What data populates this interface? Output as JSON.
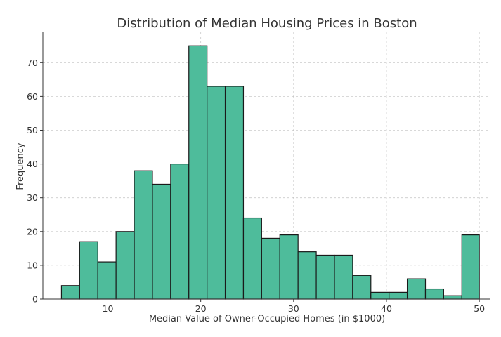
{
  "chart_data": {
    "type": "bar",
    "title": "Distribution of Median Housing Prices in Boston",
    "xlabel": "Median Value of Owner-Occupied Homes (in $1000)",
    "ylabel": "Frequency",
    "xlim": [
      3.0,
      51.2
    ],
    "ylim": [
      0,
      79
    ],
    "bin_edges": [
      5.0,
      6.96,
      8.92,
      10.88,
      12.84,
      14.8,
      16.76,
      18.72,
      20.68,
      22.64,
      24.6,
      26.56,
      28.52,
      30.48,
      32.44,
      34.4,
      36.36,
      38.32,
      40.28,
      42.24,
      44.2,
      46.16,
      48.12,
      50.0
    ],
    "values": [
      4,
      17,
      11,
      20,
      38,
      34,
      40,
      75,
      63,
      63,
      24,
      18,
      19,
      14,
      13,
      13,
      7,
      2,
      2,
      6,
      3,
      1,
      19
    ],
    "xticks": [
      10,
      20,
      30,
      40,
      50
    ],
    "yticks": [
      0,
      10,
      20,
      30,
      40,
      50,
      60,
      70
    ],
    "grid": true,
    "bar_color": "#4ebc9b",
    "edge_color": "#1a1a1a"
  }
}
